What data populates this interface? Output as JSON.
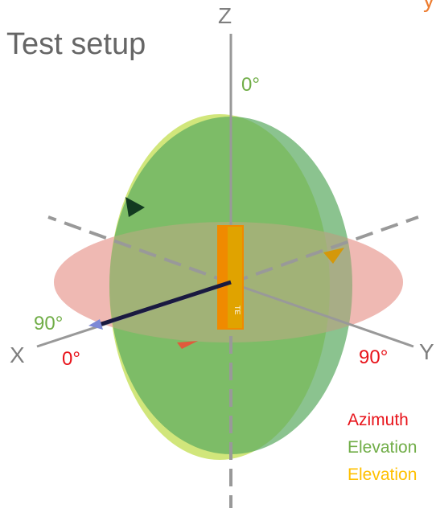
{
  "title": "Test setup",
  "top_right_fragment": "y",
  "axes": {
    "x": "X",
    "y": "Y",
    "z": "Z"
  },
  "angle_labels": {
    "elevation_top": "0°",
    "elevation_side": "90°",
    "azimuth_start": "0°",
    "azimuth_end": "90°"
  },
  "legend": [
    {
      "text": "Azimuth",
      "color": "#e8141b"
    },
    {
      "text": "Elevation",
      "color": "#70ad47"
    },
    {
      "text": "Elevation",
      "color": "#ffc000"
    }
  ],
  "device": {
    "marking": "TE"
  },
  "colors": {
    "azimuth_plane": "#f2b8b5",
    "elevation_plane_xz": "#5aaa5f",
    "elevation_plane_yz": "#c5e05a",
    "device": "#f08a00",
    "antenna": "#1a1a40",
    "axis": "#999999"
  }
}
